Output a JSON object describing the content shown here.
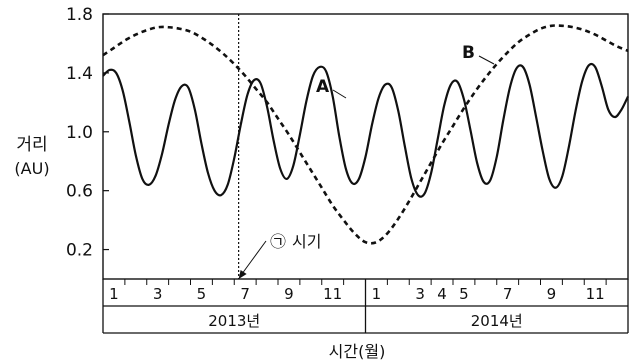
{
  "chart_data": {
    "type": "line",
    "ylabel_line1": "거리",
    "ylabel_line2": "(AU)",
    "xlabel": "시간(월)",
    "ylim": [
      0,
      1.8
    ],
    "yticks": [
      "0.2",
      "0.6",
      "1.0",
      "1.4",
      "1.8"
    ],
    "xlim": [
      0,
      24
    ],
    "month_ticks": [
      "1",
      "3",
      "5",
      "7",
      "9",
      "11",
      "1",
      "3",
      "4",
      "5",
      "7",
      "9",
      "11"
    ],
    "years": [
      "2013년",
      "2014년"
    ],
    "series": [
      {
        "name": "A",
        "style": "solid",
        "x": [
          0,
          0.3,
          0.6,
          0.9,
          1.2,
          1.5,
          1.8,
          2.1,
          2.4,
          2.7,
          3.0,
          3.3,
          3.6,
          3.9,
          4.2,
          4.5,
          4.8,
          5.1,
          5.4,
          5.7,
          6.0,
          6.3,
          6.6,
          6.9,
          7.2,
          7.5,
          7.8,
          8.1,
          8.4,
          8.7,
          9.0,
          9.3,
          9.6,
          9.9,
          10.2,
          10.5,
          10.8,
          11.1,
          11.4,
          11.7,
          12.0,
          12.3,
          12.6,
          12.9,
          13.2,
          13.5,
          13.8,
          14.1,
          14.4,
          14.7,
          15.0,
          15.3,
          15.6,
          15.9,
          16.2,
          16.5,
          16.8,
          17.1,
          17.4,
          17.7,
          18.0,
          18.3,
          18.6,
          18.9,
          19.2,
          19.5,
          19.8,
          20.1,
          20.4,
          20.7,
          21.0,
          21.3,
          21.6,
          21.9,
          22.2,
          22.5,
          22.8,
          23.1,
          23.4,
          23.7,
          24.0
        ],
        "y": [
          1.38,
          1.42,
          1.4,
          1.28,
          1.07,
          0.84,
          0.68,
          0.64,
          0.7,
          0.85,
          1.05,
          1.22,
          1.31,
          1.3,
          1.15,
          0.92,
          0.72,
          0.6,
          0.57,
          0.64,
          0.82,
          1.05,
          1.25,
          1.35,
          1.33,
          1.17,
          0.94,
          0.75,
          0.68,
          0.77,
          0.98,
          1.21,
          1.38,
          1.44,
          1.41,
          1.24,
          0.97,
          0.75,
          0.65,
          0.68,
          0.83,
          1.05,
          1.23,
          1.32,
          1.3,
          1.14,
          0.9,
          0.68,
          0.57,
          0.58,
          0.72,
          0.95,
          1.18,
          1.32,
          1.34,
          1.22,
          1.01,
          0.79,
          0.66,
          0.67,
          0.83,
          1.08,
          1.3,
          1.43,
          1.44,
          1.32,
          1.1,
          0.87,
          0.68,
          0.62,
          0.7,
          0.9,
          1.14,
          1.34,
          1.45,
          1.44,
          1.31,
          1.15,
          1.1,
          1.15,
          1.24
        ]
      },
      {
        "name": "B",
        "style": "dashed",
        "x": [
          0,
          0.5,
          1.0,
          1.5,
          2.0,
          2.5,
          3.0,
          3.5,
          4.0,
          4.5,
          5.0,
          5.5,
          6.0,
          6.5,
          7.0,
          7.5,
          8.0,
          8.5,
          9.0,
          9.5,
          10.0,
          10.5,
          11.0,
          11.5,
          12.0,
          12.5,
          13.0,
          13.5,
          14.0,
          14.5,
          15.0,
          15.5,
          16.0,
          16.5,
          17.0,
          17.5,
          18.0,
          18.5,
          19.0,
          19.5,
          20.0,
          20.5,
          21.0,
          21.5,
          22.0,
          22.5,
          23.0,
          23.5,
          24.0
        ],
        "y": [
          1.52,
          1.57,
          1.62,
          1.66,
          1.69,
          1.71,
          1.71,
          1.7,
          1.68,
          1.64,
          1.59,
          1.53,
          1.46,
          1.38,
          1.29,
          1.2,
          1.09,
          0.98,
          0.86,
          0.74,
          0.62,
          0.5,
          0.4,
          0.31,
          0.25,
          0.25,
          0.31,
          0.41,
          0.53,
          0.66,
          0.79,
          0.92,
          1.04,
          1.16,
          1.27,
          1.37,
          1.46,
          1.54,
          1.61,
          1.66,
          1.7,
          1.72,
          1.72,
          1.71,
          1.69,
          1.66,
          1.62,
          1.58,
          1.55
        ]
      }
    ],
    "annotation": {
      "symbol": "㉠",
      "text": "시기",
      "x": 6.2
    }
  }
}
